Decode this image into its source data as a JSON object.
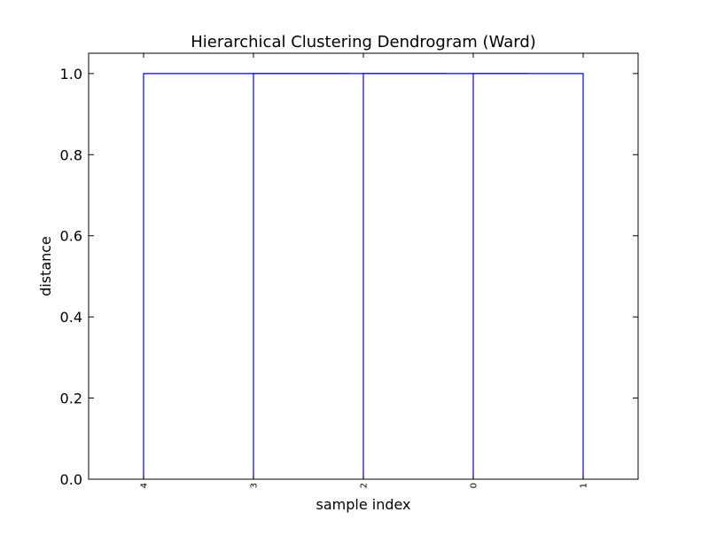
{
  "chart_data": {
    "type": "dendrogram",
    "title": "Hierarchical Clustering Dendrogram (Ward)",
    "xlabel": "sample index",
    "ylabel": "distance",
    "ylim": [
      0.0,
      1.05
    ],
    "yticks": [
      0.0,
      0.2,
      0.4,
      0.6,
      0.8,
      1.0
    ],
    "ytick_labels": [
      "0.0",
      "0.2",
      "0.4",
      "0.6",
      "0.8",
      "1.0"
    ],
    "leaf_order": [
      "4",
      "3",
      "2",
      "0",
      "1"
    ],
    "merges": [
      {
        "left": "0",
        "right": "1",
        "distance": 1.0
      },
      {
        "left": "2",
        "right": "0,1",
        "distance": 1.0
      },
      {
        "left": "3",
        "right": "2,0,1",
        "distance": 1.0
      },
      {
        "left": "4",
        "right": "3,2,0,1",
        "distance": 1.0
      }
    ],
    "link_color": "#0000ff",
    "grid": false,
    "legend": "none"
  }
}
